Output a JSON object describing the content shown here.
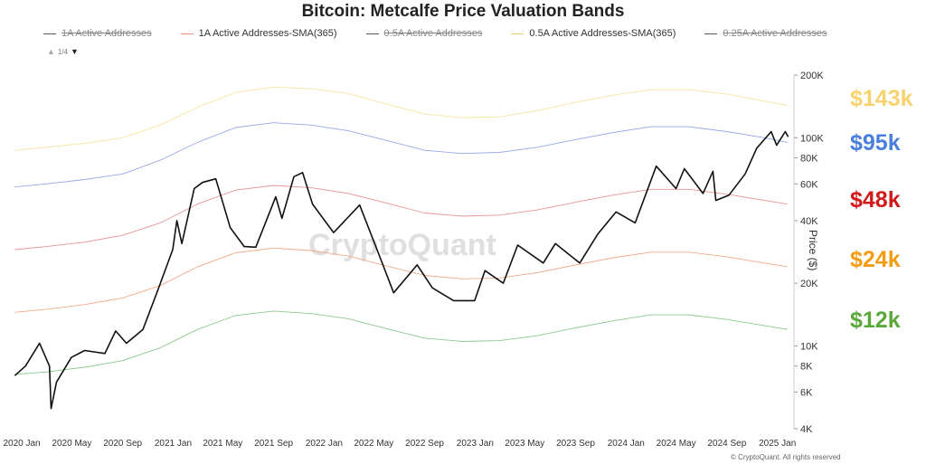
{
  "chart_data": {
    "type": "line",
    "title": "Bitcoin: Metcalfe Price Valuation Bands",
    "ylabel": "Price ($)",
    "yscale": "log",
    "ylim": [
      4000,
      200000
    ],
    "xlim": [
      "2019-12-10",
      "2025-02-10"
    ],
    "y_ticks": [
      {
        "v": 4000,
        "label": "4K"
      },
      {
        "v": 6000,
        "label": "6K"
      },
      {
        "v": 8000,
        "label": "8K"
      },
      {
        "v": 10000,
        "label": "10K"
      },
      {
        "v": 20000,
        "label": "20K"
      },
      {
        "v": 40000,
        "label": "40K"
      },
      {
        "v": 60000,
        "label": "60K"
      },
      {
        "v": 80000,
        "label": "80K"
      },
      {
        "v": 100000,
        "label": "100K"
      },
      {
        "v": 200000,
        "label": "200K"
      }
    ],
    "x_ticks": [
      {
        "d": "2020-01-01",
        "label": "2020 Jan"
      },
      {
        "d": "2020-05-01",
        "label": "2020 May"
      },
      {
        "d": "2020-09-01",
        "label": "2020 Sep"
      },
      {
        "d": "2021-01-01",
        "label": "2021 Jan"
      },
      {
        "d": "2021-05-01",
        "label": "2021 May"
      },
      {
        "d": "2021-09-01",
        "label": "2021 Sep"
      },
      {
        "d": "2022-01-01",
        "label": "2022 Jan"
      },
      {
        "d": "2022-05-01",
        "label": "2022 May"
      },
      {
        "d": "2022-09-01",
        "label": "2022 Sep"
      },
      {
        "d": "2023-01-01",
        "label": "2023 Jan"
      },
      {
        "d": "2023-05-01",
        "label": "2023 May"
      },
      {
        "d": "2023-09-01",
        "label": "2023 Sep"
      },
      {
        "d": "2024-01-01",
        "label": "2024 Jan"
      },
      {
        "d": "2024-05-01",
        "label": "2024 May"
      },
      {
        "d": "2024-09-01",
        "label": "2024 Sep"
      },
      {
        "d": "2025-01-01",
        "label": "2025 Jan"
      }
    ],
    "legend": [
      {
        "label": "1A Active Addresses",
        "color": "#555555",
        "hidden": true
      },
      {
        "label": "1A Active Addresses-SMA(365)",
        "color": "#f28b82",
        "hidden": false
      },
      {
        "label": "0.5A Active Addresses",
        "color": "#555555",
        "hidden": true
      },
      {
        "label": "0.5A Active Addresses-SMA(365)",
        "color": "#f6c77a",
        "hidden": false
      },
      {
        "label": "0.25A Active Addresses",
        "color": "#555555",
        "hidden": true
      }
    ],
    "legend_page": "1/4",
    "watermark": "CryptoQuant",
    "series": [
      {
        "color": "#f9e4a0",
        "values": [
          [
            "2019-12-15",
            87000
          ],
          [
            "2020-03-01",
            90000
          ],
          [
            "2020-06-01",
            94000
          ],
          [
            "2020-09-01",
            100000
          ],
          [
            "2020-12-01",
            115000
          ],
          [
            "2021-03-01",
            140000
          ],
          [
            "2021-06-01",
            165000
          ],
          [
            "2021-09-01",
            175000
          ],
          [
            "2021-12-01",
            172000
          ],
          [
            "2022-03-01",
            163000
          ],
          [
            "2022-06-01",
            145000
          ],
          [
            "2022-09-01",
            130000
          ],
          [
            "2022-12-01",
            125000
          ],
          [
            "2023-03-01",
            126000
          ],
          [
            "2023-06-01",
            135000
          ],
          [
            "2023-09-01",
            148000
          ],
          [
            "2023-12-01",
            160000
          ],
          [
            "2024-03-01",
            170000
          ],
          [
            "2024-06-01",
            170000
          ],
          [
            "2024-09-01",
            162000
          ],
          [
            "2024-12-01",
            150000
          ],
          [
            "2025-01-25",
            143000
          ]
        ]
      },
      {
        "color": "#9aa8e8",
        "values": [
          [
            "2019-12-15",
            58000
          ],
          [
            "2020-03-01",
            60000
          ],
          [
            "2020-06-01",
            63000
          ],
          [
            "2020-09-01",
            67000
          ],
          [
            "2020-12-01",
            78000
          ],
          [
            "2021-03-01",
            95000
          ],
          [
            "2021-06-01",
            112000
          ],
          [
            "2021-09-01",
            118000
          ],
          [
            "2021-12-01",
            115000
          ],
          [
            "2022-03-01",
            108000
          ],
          [
            "2022-06-01",
            97000
          ],
          [
            "2022-09-01",
            87000
          ],
          [
            "2022-12-01",
            84000
          ],
          [
            "2023-03-01",
            85000
          ],
          [
            "2023-06-01",
            90000
          ],
          [
            "2023-09-01",
            98000
          ],
          [
            "2023-12-01",
            106000
          ],
          [
            "2024-03-01",
            113000
          ],
          [
            "2024-06-01",
            113000
          ],
          [
            "2024-09-01",
            107000
          ],
          [
            "2024-12-01",
            100000
          ],
          [
            "2025-01-25",
            95000
          ]
        ]
      },
      {
        "color": "#e89494",
        "values": [
          [
            "2019-12-15",
            29000
          ],
          [
            "2020-03-01",
            30000
          ],
          [
            "2020-06-01",
            31500
          ],
          [
            "2020-09-01",
            34000
          ],
          [
            "2020-12-01",
            39000
          ],
          [
            "2021-03-01",
            48000
          ],
          [
            "2021-06-01",
            56000
          ],
          [
            "2021-09-01",
            59000
          ],
          [
            "2021-12-01",
            57500
          ],
          [
            "2022-03-01",
            54000
          ],
          [
            "2022-06-01",
            48500
          ],
          [
            "2022-09-01",
            43500
          ],
          [
            "2022-12-01",
            42000
          ],
          [
            "2023-03-01",
            42500
          ],
          [
            "2023-06-01",
            45000
          ],
          [
            "2023-09-01",
            49000
          ],
          [
            "2023-12-01",
            53000
          ],
          [
            "2024-03-01",
            56500
          ],
          [
            "2024-06-01",
            56500
          ],
          [
            "2024-09-01",
            53500
          ],
          [
            "2024-12-01",
            50000
          ],
          [
            "2025-01-25",
            48000
          ]
        ]
      },
      {
        "color": "#f2a98a",
        "values": [
          [
            "2019-12-15",
            14500
          ],
          [
            "2020-03-01",
            15000
          ],
          [
            "2020-06-01",
            15800
          ],
          [
            "2020-09-01",
            17000
          ],
          [
            "2020-12-01",
            19500
          ],
          [
            "2021-03-01",
            24000
          ],
          [
            "2021-06-01",
            28000
          ],
          [
            "2021-09-01",
            29500
          ],
          [
            "2021-12-01",
            28700
          ],
          [
            "2022-03-01",
            27000
          ],
          [
            "2022-06-01",
            24200
          ],
          [
            "2022-09-01",
            21800
          ],
          [
            "2022-12-01",
            21000
          ],
          [
            "2023-03-01",
            21200
          ],
          [
            "2023-06-01",
            22500
          ],
          [
            "2023-09-01",
            24500
          ],
          [
            "2023-12-01",
            26500
          ],
          [
            "2024-03-01",
            28200
          ],
          [
            "2024-06-01",
            28200
          ],
          [
            "2024-09-01",
            26800
          ],
          [
            "2024-12-01",
            25000
          ],
          [
            "2025-01-25",
            24000
          ]
        ]
      },
      {
        "color": "#8cc88a",
        "values": [
          [
            "2019-12-15",
            7300
          ],
          [
            "2020-03-01",
            7500
          ],
          [
            "2020-06-01",
            7900
          ],
          [
            "2020-09-01",
            8500
          ],
          [
            "2020-12-01",
            9800
          ],
          [
            "2021-03-01",
            12000
          ],
          [
            "2021-06-01",
            14000
          ],
          [
            "2021-09-01",
            14700
          ],
          [
            "2021-12-01",
            14300
          ],
          [
            "2022-03-01",
            13500
          ],
          [
            "2022-06-01",
            12100
          ],
          [
            "2022-09-01",
            10900
          ],
          [
            "2022-12-01",
            10500
          ],
          [
            "2023-03-01",
            10600
          ],
          [
            "2023-06-01",
            11200
          ],
          [
            "2023-09-01",
            12200
          ],
          [
            "2023-12-01",
            13200
          ],
          [
            "2024-03-01",
            14100
          ],
          [
            "2024-06-01",
            14100
          ],
          [
            "2024-09-01",
            13400
          ],
          [
            "2024-12-01",
            12500
          ],
          [
            "2025-01-25",
            12000
          ]
        ]
      },
      {
        "color": "#111111",
        "values": [
          [
            "2019-12-15",
            7200
          ],
          [
            "2020-01-10",
            8000
          ],
          [
            "2020-02-13",
            10300
          ],
          [
            "2020-03-08",
            8000
          ],
          [
            "2020-03-12",
            5000
          ],
          [
            "2020-03-25",
            6700
          ],
          [
            "2020-04-30",
            8800
          ],
          [
            "2020-06-01",
            9500
          ],
          [
            "2020-07-20",
            9200
          ],
          [
            "2020-08-15",
            11800
          ],
          [
            "2020-09-10",
            10300
          ],
          [
            "2020-10-20",
            12000
          ],
          [
            "2020-11-25",
            18500
          ],
          [
            "2020-12-31",
            29000
          ],
          [
            "2021-01-10",
            40000
          ],
          [
            "2021-01-22",
            31000
          ],
          [
            "2021-02-21",
            57000
          ],
          [
            "2021-03-13",
            61000
          ],
          [
            "2021-04-14",
            63500
          ],
          [
            "2021-05-19",
            37000
          ],
          [
            "2021-06-22",
            30000
          ],
          [
            "2021-07-20",
            29800
          ],
          [
            "2021-09-06",
            52000
          ],
          [
            "2021-09-21",
            41000
          ],
          [
            "2021-10-20",
            65000
          ],
          [
            "2021-11-10",
            68000
          ],
          [
            "2021-12-04",
            48000
          ],
          [
            "2022-01-24",
            35000
          ],
          [
            "2022-03-28",
            47500
          ],
          [
            "2022-05-12",
            28000
          ],
          [
            "2022-06-18",
            18000
          ],
          [
            "2022-08-14",
            24500
          ],
          [
            "2022-09-20",
            19000
          ],
          [
            "2022-11-10",
            16500
          ],
          [
            "2022-12-31",
            16500
          ],
          [
            "2023-01-25",
            23000
          ],
          [
            "2023-03-10",
            20000
          ],
          [
            "2023-04-14",
            30500
          ],
          [
            "2023-06-15",
            25000
          ],
          [
            "2023-07-14",
            31000
          ],
          [
            "2023-09-11",
            25000
          ],
          [
            "2023-10-25",
            34500
          ],
          [
            "2023-12-08",
            44000
          ],
          [
            "2024-01-23",
            39000
          ],
          [
            "2024-03-14",
            73000
          ],
          [
            "2024-05-01",
            57000
          ],
          [
            "2024-05-21",
            71000
          ],
          [
            "2024-07-05",
            54000
          ],
          [
            "2024-07-29",
            69000
          ],
          [
            "2024-08-05",
            50000
          ],
          [
            "2024-09-06",
            53000
          ],
          [
            "2024-10-15",
            67000
          ],
          [
            "2024-11-12",
            89000
          ],
          [
            "2024-12-17",
            107000
          ],
          [
            "2024-12-30",
            92000
          ],
          [
            "2025-01-20",
            107000
          ],
          [
            "2025-01-27",
            101000
          ]
        ]
      }
    ],
    "annotations": [
      {
        "label": "$143k",
        "color": "#f7d36f"
      },
      {
        "label": "$95k",
        "color": "#4a7fdc"
      },
      {
        "label": "$48k",
        "color": "#d11a1a"
      },
      {
        "label": "$24k",
        "color": "#f39c12"
      },
      {
        "label": "$12k",
        "color": "#5aa83a"
      }
    ],
    "copyright": "© CryptoQuant. All rights reserved"
  }
}
